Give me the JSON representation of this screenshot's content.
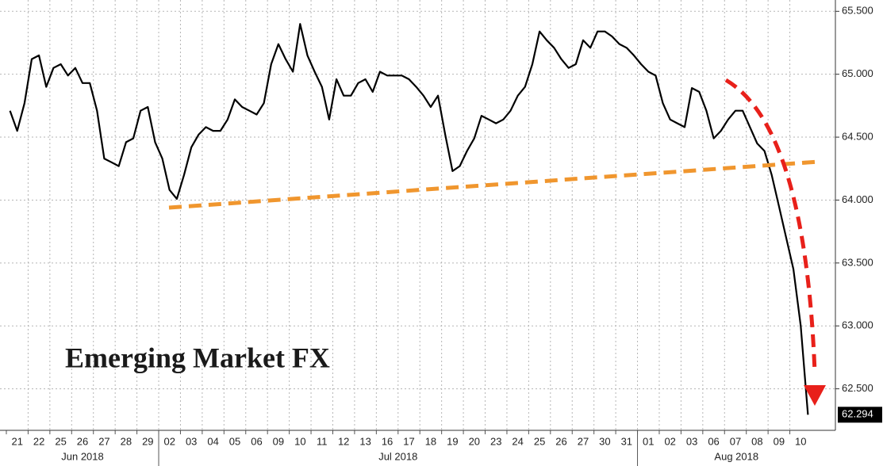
{
  "chart_data": {
    "type": "line",
    "annotation": "Emerging Market FX",
    "categories": [
      null,
      "21",
      null,
      null,
      "22",
      null,
      null,
      "25",
      null,
      null,
      "26",
      null,
      null,
      "27",
      null,
      null,
      "28",
      null,
      null,
      "29",
      null,
      null,
      "02",
      null,
      null,
      "03",
      null,
      null,
      "04",
      null,
      null,
      "05",
      null,
      null,
      "06",
      null,
      null,
      "09",
      null,
      null,
      "10",
      null,
      null,
      "11",
      null,
      null,
      "12",
      null,
      null,
      "13",
      null,
      null,
      "16",
      null,
      null,
      "17",
      null,
      null,
      "18",
      null,
      null,
      "19",
      null,
      null,
      "20",
      null,
      null,
      "23",
      null,
      null,
      "24",
      null,
      null,
      "25",
      null,
      null,
      "26",
      null,
      null,
      "27",
      null,
      null,
      "30",
      null,
      null,
      "31",
      null,
      null,
      "01",
      null,
      null,
      "02",
      null,
      null,
      "03",
      null,
      null,
      "06",
      null,
      null,
      "07",
      null,
      null,
      "08",
      null,
      null,
      "09",
      null,
      null,
      "10",
      null
    ],
    "months": [
      "Jun 2018",
      "Jul 2018",
      "Aug 2018"
    ],
    "series": [
      {
        "color": "#000000",
        "values": [
          64.71,
          64.55,
          64.77,
          65.12,
          65.15,
          64.9,
          65.05,
          65.08,
          64.99,
          65.05,
          64.93,
          64.93,
          64.71,
          64.33,
          64.3,
          64.27,
          64.46,
          64.49,
          64.71,
          64.74,
          64.46,
          64.33,
          64.08,
          64.01,
          64.2,
          64.42,
          64.52,
          64.58,
          64.55,
          64.55,
          64.64,
          64.8,
          64.74,
          64.71,
          64.68,
          64.77,
          65.08,
          65.24,
          65.12,
          65.02,
          65.4,
          65.15,
          65.02,
          64.9,
          64.64,
          64.96,
          64.83,
          64.83,
          64.93,
          64.96,
          64.86,
          65.02,
          64.99,
          64.99,
          64.99,
          64.96,
          64.9,
          64.83,
          64.74,
          64.83,
          64.52,
          64.23,
          64.27,
          64.39,
          64.49,
          64.67,
          64.64,
          64.61,
          64.64,
          64.71,
          64.83,
          64.9,
          65.08,
          65.34,
          65.27,
          65.21,
          65.12,
          65.05,
          65.08,
          65.27,
          65.21,
          65.34,
          65.34,
          65.3,
          65.24,
          65.21,
          65.15,
          65.08,
          65.02,
          64.99,
          64.77,
          64.64,
          64.61,
          64.58,
          64.89,
          64.86,
          64.71,
          64.49,
          64.55,
          64.64,
          64.71,
          64.71,
          64.58,
          64.45,
          64.39,
          64.2,
          63.95,
          63.7,
          63.45,
          63.0,
          62.294
        ]
      }
    ],
    "ylim": [
      62.17,
      65.59
    ],
    "yticks": [
      {
        "value": 62.5,
        "label": "62.500"
      },
      {
        "value": 63,
        "label": "63.000"
      },
      {
        "value": 63.5,
        "label": "63.500"
      },
      {
        "value": 64,
        "label": "64.000"
      },
      {
        "value": 64.5,
        "label": "64.500"
      },
      {
        "value": 65,
        "label": "65.000"
      },
      {
        "value": 65.5,
        "label": "65.500"
      }
    ],
    "grid": true
  }
}
